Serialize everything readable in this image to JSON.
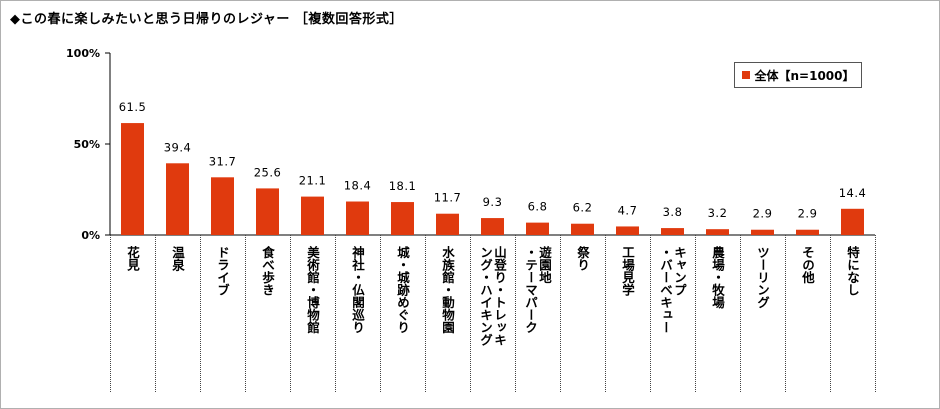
{
  "title": "◆この春に楽しみたいと思う日帰りのレジャー ［複数回答形式］",
  "colors": {
    "bar": "#e03a0e",
    "axis": "#000000",
    "divider": "#444444"
  },
  "chart_data": {
    "type": "bar",
    "ylim": [
      0,
      100
    ],
    "yticks": [
      "0%",
      "50%",
      "100%"
    ],
    "grid": false,
    "legend_position": "top-right",
    "series": [
      {
        "name": "全体【n=1000】",
        "values": [
          61.5,
          39.4,
          31.7,
          25.6,
          21.1,
          18.4,
          18.1,
          11.7,
          9.3,
          6.8,
          6.2,
          4.7,
          3.8,
          3.2,
          2.9,
          2.9,
          14.4
        ]
      }
    ],
    "categories": [
      [
        "花見"
      ],
      [
        "温泉"
      ],
      [
        "ドライブ"
      ],
      [
        "食べ歩き"
      ],
      [
        "美術館・博物館"
      ],
      [
        "神社・仏閣巡り"
      ],
      [
        "城・城跡めぐり"
      ],
      [
        "水族館・動物園"
      ],
      [
        "山登り・トレッキ",
        "ング・ハイキング"
      ],
      [
        "遊園地",
        "・テーマパーク"
      ],
      [
        "祭り"
      ],
      [
        "工場見学"
      ],
      [
        "キャンプ",
        "・バーベキュー"
      ],
      [
        "農場・牧場"
      ],
      [
        "ツーリング"
      ],
      [
        "その他"
      ],
      [
        "特になし"
      ]
    ]
  }
}
